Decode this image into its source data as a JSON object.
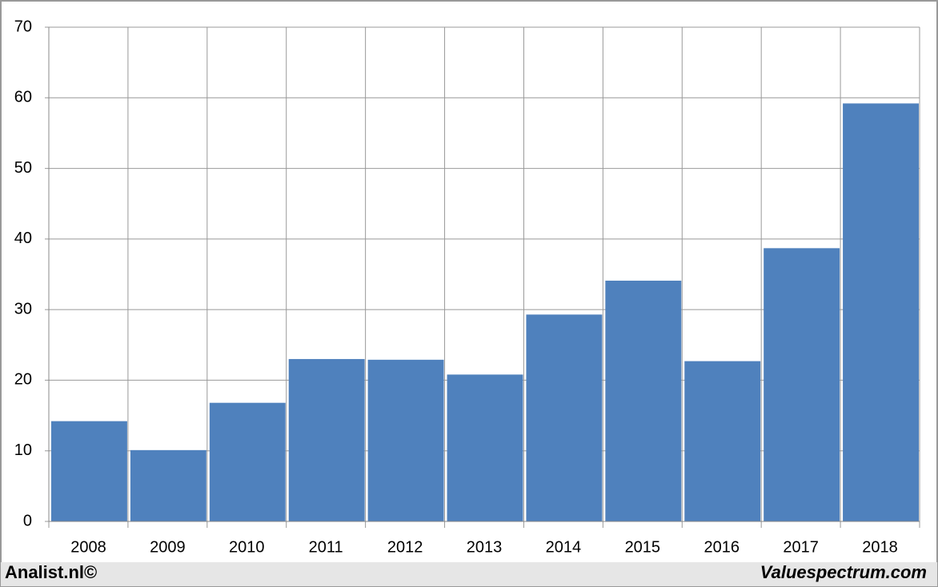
{
  "chart_data": {
    "type": "bar",
    "categories": [
      "2008",
      "2009",
      "2010",
      "2011",
      "2012",
      "2013",
      "2014",
      "2015",
      "2016",
      "2017",
      "2018"
    ],
    "values": [
      14.2,
      10.1,
      16.8,
      23.0,
      22.9,
      20.8,
      29.3,
      34.1,
      22.7,
      38.7,
      59.2
    ],
    "color": "#4f81bd",
    "ylim": [
      0,
      70
    ],
    "yticks": [
      0,
      10,
      20,
      30,
      40,
      50,
      60,
      70
    ],
    "grid": true,
    "footer_left": "Analist.nl©",
    "footer_right": "Valuespectrum.com"
  }
}
